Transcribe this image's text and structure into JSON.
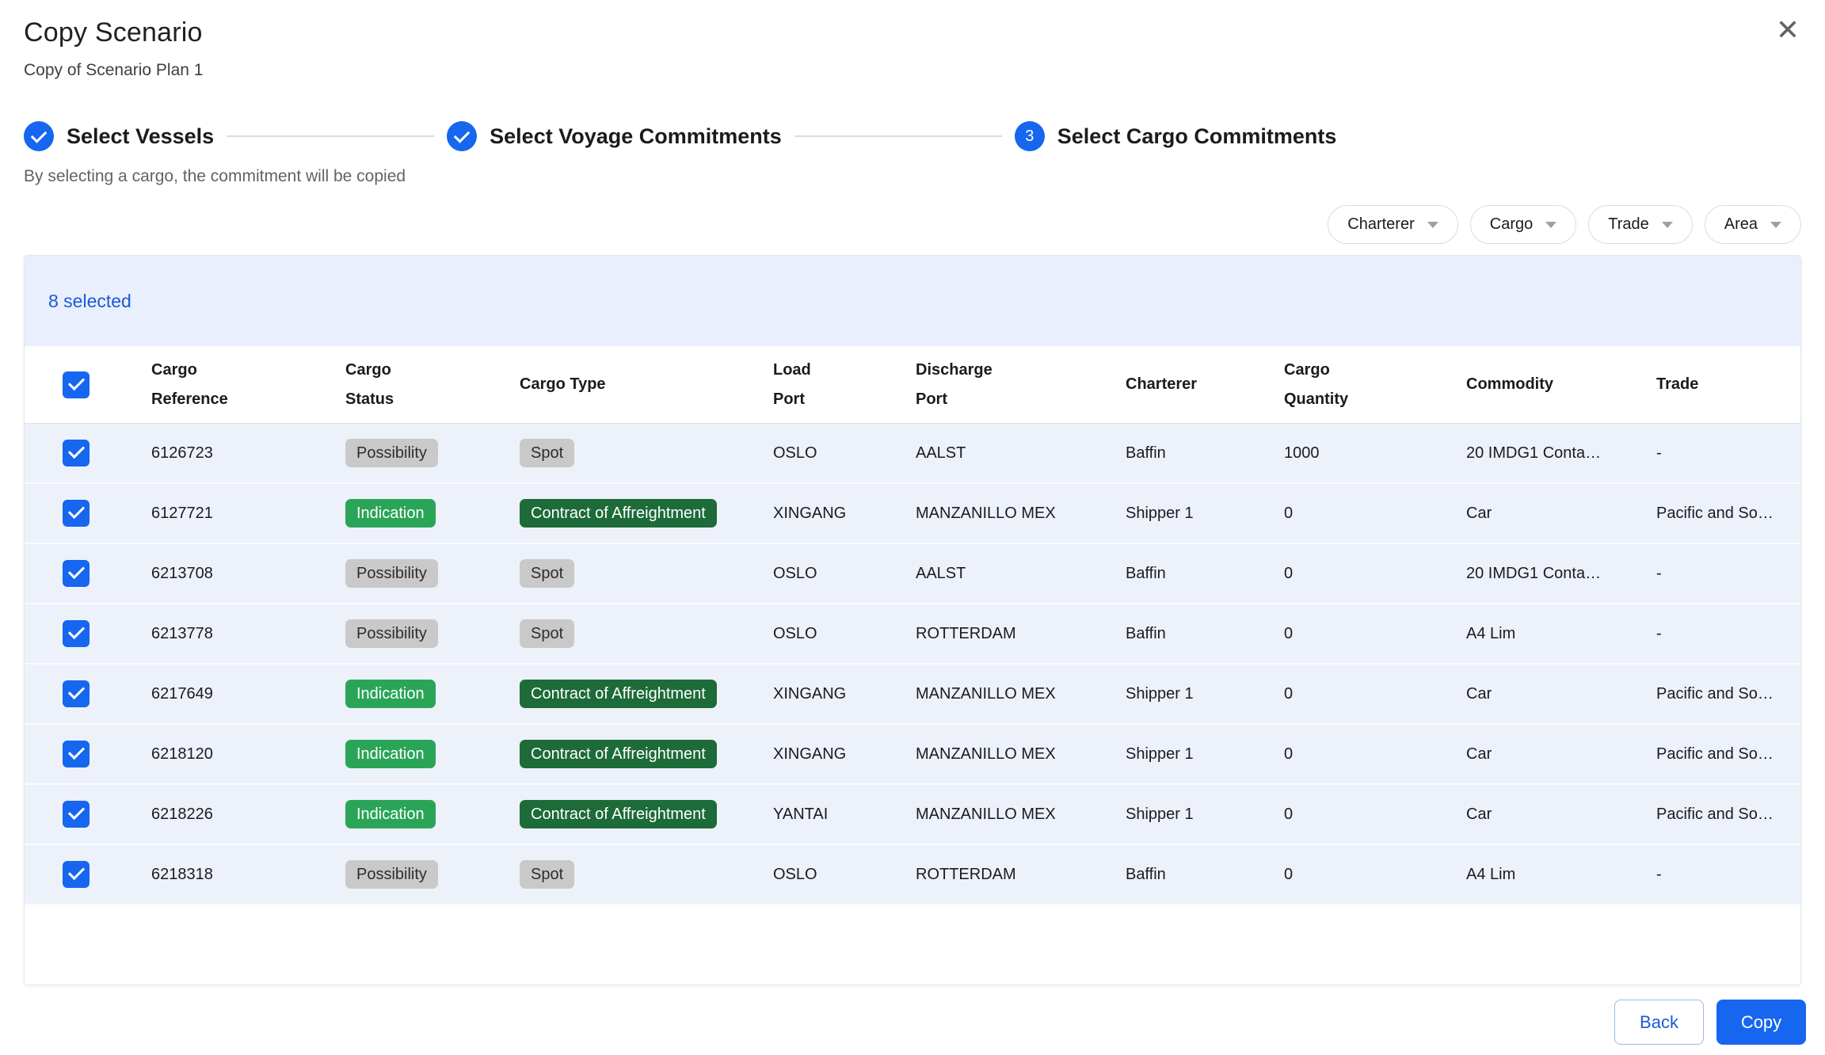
{
  "colors": {
    "primary_blue": "#1666f0",
    "selection_bar_bg": "#e9effc",
    "row_bg": "#edf1fa",
    "badge_gray_bg": "#c9c9c9",
    "badge_green_bg": "#2aa558",
    "badge_dark_green_bg": "#1d6b38"
  },
  "dialog": {
    "title": "Copy Scenario",
    "subtitle": "Copy of Scenario Plan 1"
  },
  "stepper": {
    "steps": [
      {
        "label": "Select Vessels",
        "state": "completed"
      },
      {
        "label": "Select Voyage Commitments",
        "state": "completed"
      },
      {
        "label": "Select Cargo Commitments",
        "state": "active",
        "number": "3"
      }
    ]
  },
  "helper_text": "By selecting a cargo, the commitment will be copied",
  "filters": [
    {
      "label": "Charterer"
    },
    {
      "label": "Cargo"
    },
    {
      "label": "Trade"
    },
    {
      "label": "Area"
    }
  ],
  "table": {
    "selected_count_label": "8 selected",
    "select_all_checked": true,
    "columns": [
      "Cargo\nReference",
      "Cargo\nStatus",
      "Cargo Type",
      "Load\nPort",
      "Discharge\nPort",
      "Charterer",
      "Cargo\nQuantity",
      "Commodity",
      "Trade"
    ],
    "rows": [
      {
        "checked": true,
        "reference": "6126723",
        "status": "Possibility",
        "status_variant": "gray",
        "cargo_type": "Spot",
        "cargo_type_variant": "gray",
        "load_port": "OSLO",
        "discharge_port": "AALST",
        "charterer": "Baffin",
        "quantity": "1000",
        "commodity": "20 IMDG1 Conta…",
        "trade": "-"
      },
      {
        "checked": true,
        "reference": "6127721",
        "status": "Indication",
        "status_variant": "green",
        "cargo_type": "Contract of Affreightment",
        "cargo_type_variant": "darkgreen",
        "load_port": "XINGANG",
        "discharge_port": "MANZANILLO MEX",
        "charterer": "Shipper 1",
        "quantity": "0",
        "commodity": "Car",
        "trade": "Pacific and So…"
      },
      {
        "checked": true,
        "reference": "6213708",
        "status": "Possibility",
        "status_variant": "gray",
        "cargo_type": "Spot",
        "cargo_type_variant": "gray",
        "load_port": "OSLO",
        "discharge_port": "AALST",
        "charterer": "Baffin",
        "quantity": "0",
        "commodity": "20 IMDG1 Conta…",
        "trade": "-"
      },
      {
        "checked": true,
        "reference": "6213778",
        "status": "Possibility",
        "status_variant": "gray",
        "cargo_type": "Spot",
        "cargo_type_variant": "gray",
        "load_port": "OSLO",
        "discharge_port": "ROTTERDAM",
        "charterer": "Baffin",
        "quantity": "0",
        "commodity": "A4 Lim",
        "trade": "-"
      },
      {
        "checked": true,
        "reference": "6217649",
        "status": "Indication",
        "status_variant": "green",
        "cargo_type": "Contract of Affreightment",
        "cargo_type_variant": "darkgreen",
        "load_port": "XINGANG",
        "discharge_port": "MANZANILLO MEX",
        "charterer": "Shipper 1",
        "quantity": "0",
        "commodity": "Car",
        "trade": "Pacific and So…"
      },
      {
        "checked": true,
        "reference": "6218120",
        "status": "Indication",
        "status_variant": "green",
        "cargo_type": "Contract of Affreightment",
        "cargo_type_variant": "darkgreen",
        "load_port": "XINGANG",
        "discharge_port": "MANZANILLO MEX",
        "charterer": "Shipper 1",
        "quantity": "0",
        "commodity": "Car",
        "trade": "Pacific and So…"
      },
      {
        "checked": true,
        "reference": "6218226",
        "status": "Indication",
        "status_variant": "green",
        "cargo_type": "Contract of Affreightment",
        "cargo_type_variant": "darkgreen",
        "load_port": "YANTAI",
        "discharge_port": "MANZANILLO MEX",
        "charterer": "Shipper 1",
        "quantity": "0",
        "commodity": "Car",
        "trade": "Pacific and So…"
      },
      {
        "checked": true,
        "reference": "6218318",
        "status": "Possibility",
        "status_variant": "gray",
        "cargo_type": "Spot",
        "cargo_type_variant": "gray",
        "load_port": "OSLO",
        "discharge_port": "ROTTERDAM",
        "charterer": "Baffin",
        "quantity": "0",
        "commodity": "A4 Lim",
        "trade": "-"
      }
    ]
  },
  "footer": {
    "back_label": "Back",
    "copy_label": "Copy"
  },
  "icons": {
    "close": "✕"
  }
}
